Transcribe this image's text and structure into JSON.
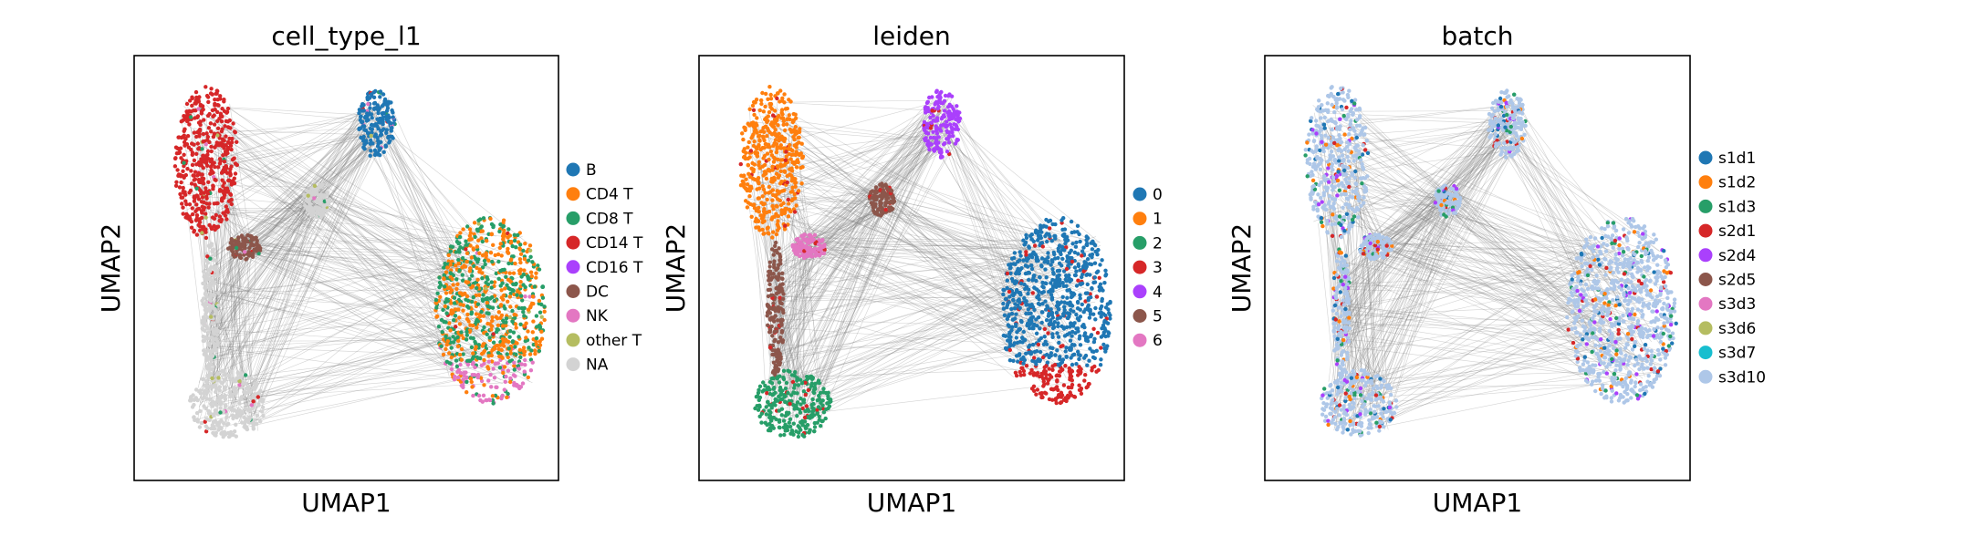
{
  "chart_data": [
    {
      "type": "scatter",
      "title": "cell_type_l1",
      "xlabel": "UMAP1",
      "ylabel": "UMAP2",
      "grid": false,
      "edges": "gray connectivity lines between cluster points",
      "legend_placement": "right",
      "legend": [
        {
          "label": "B",
          "color": "#1f77b4"
        },
        {
          "label": "CD4 T",
          "color": "#ff7f0e"
        },
        {
          "label": "CD8 T",
          "color": "#279e68"
        },
        {
          "label": "CD14 T",
          "color": "#d62728"
        },
        {
          "label": "CD16 T",
          "color": "#aa40fc"
        },
        {
          "label": "DC",
          "color": "#8c564b"
        },
        {
          "label": "NK",
          "color": "#e377c2"
        },
        {
          "label": "other T",
          "color": "#b5bd61"
        },
        {
          "label": "NA",
          "color": "#d3d3d3"
        }
      ]
    },
    {
      "type": "scatter",
      "title": "leiden",
      "xlabel": "UMAP1",
      "ylabel": "UMAP2",
      "grid": false,
      "edges": "gray connectivity lines between cluster points",
      "legend_placement": "right",
      "legend": [
        {
          "label": "0",
          "color": "#1f77b4"
        },
        {
          "label": "1",
          "color": "#ff7f0e"
        },
        {
          "label": "2",
          "color": "#279e68"
        },
        {
          "label": "3",
          "color": "#d62728"
        },
        {
          "label": "4",
          "color": "#aa40fc"
        },
        {
          "label": "5",
          "color": "#8c564b"
        },
        {
          "label": "6",
          "color": "#e377c2"
        }
      ]
    },
    {
      "type": "scatter",
      "title": "batch",
      "xlabel": "UMAP1",
      "ylabel": "UMAP2",
      "grid": false,
      "edges": "gray connectivity lines between cluster points",
      "legend_placement": "right",
      "legend": [
        {
          "label": "s1d1",
          "color": "#1f77b4"
        },
        {
          "label": "s1d2",
          "color": "#ff7f0e"
        },
        {
          "label": "s1d3",
          "color": "#279e68"
        },
        {
          "label": "s2d1",
          "color": "#d62728"
        },
        {
          "label": "s2d4",
          "color": "#aa40fc"
        },
        {
          "label": "s2d5",
          "color": "#8c564b"
        },
        {
          "label": "s3d3",
          "color": "#e377c2"
        },
        {
          "label": "s3d6",
          "color": "#b5bd61"
        },
        {
          "label": "s3d7",
          "color": "#17becf"
        },
        {
          "label": "s3d10",
          "color": "#aec7e8"
        }
      ]
    }
  ]
}
